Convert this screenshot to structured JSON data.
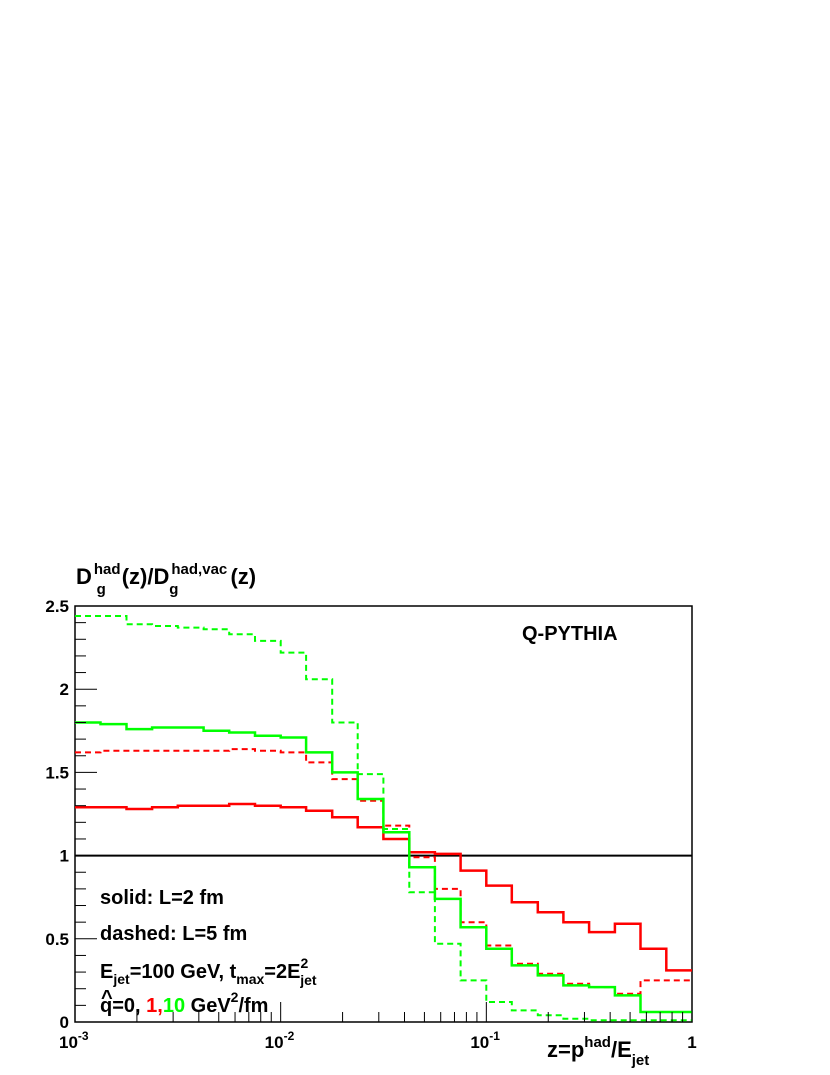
{
  "chart_data": {
    "type": "line",
    "title": "Q-PYTHIA",
    "xscale": "log",
    "xlim": [
      0.001,
      1
    ],
    "ylim": [
      0,
      2.5
    ],
    "xticks": [
      {
        "value": 0.001,
        "base": "10",
        "exp": "-3"
      },
      {
        "value": 0.01,
        "base": "10",
        "exp": "-2"
      },
      {
        "value": 0.1,
        "base": "10",
        "exp": "-1"
      },
      {
        "value": 1,
        "base": "1",
        "exp": ""
      }
    ],
    "yticks": [
      {
        "value": 0,
        "label": "0"
      },
      {
        "value": 0.5,
        "label": "0.5"
      },
      {
        "value": 1,
        "label": "1"
      },
      {
        "value": 1.5,
        "label": "1.5"
      },
      {
        "value": 2,
        "label": "2"
      },
      {
        "value": 2.5,
        "label": "2.5"
      }
    ],
    "ylabel": {
      "D1": "D",
      "sup1": "had",
      "sub1": "g",
      "mid": "(z)/D",
      "sup2": "had,vac",
      "sub2": "g",
      "end": "(z)"
    },
    "xlabel": {
      "pre": "z=p",
      "sup": "had",
      "mid": "/E",
      "sub": "jet"
    },
    "grid": false,
    "reference_line": {
      "y": 1,
      "color": "#000000"
    },
    "bin_edges": [
      0.001,
      0.00133,
      0.00178,
      0.00237,
      0.00316,
      0.00422,
      0.00562,
      0.0075,
      0.01,
      0.0133,
      0.0178,
      0.0237,
      0.0316,
      0.0422,
      0.0562,
      0.075,
      0.1,
      0.133,
      0.178,
      0.237,
      0.316,
      0.422,
      0.562,
      0.75,
      1.0
    ],
    "series": [
      {
        "color": "#ff0000",
        "style": "solid",
        "values": [
          1.29,
          1.29,
          1.28,
          1.29,
          1.3,
          1.3,
          1.31,
          1.3,
          1.29,
          1.27,
          1.23,
          1.17,
          1.1,
          1.02,
          1.01,
          0.91,
          0.82,
          0.72,
          0.66,
          0.6,
          0.54,
          0.59,
          0.44,
          0.31
        ]
      },
      {
        "color": "#ff0000",
        "style": "dashed",
        "values": [
          1.62,
          1.63,
          1.63,
          1.63,
          1.63,
          1.63,
          1.64,
          1.63,
          1.62,
          1.56,
          1.46,
          1.33,
          1.18,
          0.99,
          0.8,
          0.6,
          0.46,
          0.35,
          0.29,
          0.23,
          0.21,
          0.17,
          0.25,
          0.25
        ]
      },
      {
        "color": "#00ff00",
        "style": "solid",
        "values": [
          1.8,
          1.79,
          1.76,
          1.77,
          1.77,
          1.75,
          1.74,
          1.72,
          1.71,
          1.62,
          1.5,
          1.34,
          1.14,
          0.93,
          0.74,
          0.57,
          0.44,
          0.34,
          0.28,
          0.22,
          0.21,
          0.16,
          0.06,
          0.06
        ]
      },
      {
        "color": "#00ff00",
        "style": "dashed",
        "values": [
          2.44,
          2.44,
          2.39,
          2.38,
          2.37,
          2.36,
          2.33,
          2.29,
          2.22,
          2.06,
          1.8,
          1.49,
          1.16,
          0.78,
          0.47,
          0.25,
          0.12,
          0.07,
          0.04,
          0.02,
          0.01,
          0.01,
          0.01,
          0.01
        ]
      }
    ]
  },
  "annotations": {
    "solid": "solid: L=2 fm",
    "dashed": "dashed: L=5 fm",
    "ejet": {
      "p1": "E",
      "sub1": "jet",
      "p2": "=100 GeV, t",
      "sub2": "max",
      "p3": "=2E",
      "sup3": "2",
      "sub3": "jet"
    },
    "qhat": {
      "p1": "q=0, ",
      "hat": "^",
      "v1": "1",
      "comma": ",",
      "v2": "10",
      "p2": "   GeV",
      "sup": "2",
      "p3": "/fm"
    },
    "colors": {
      "red": "#ff0000",
      "green": "#00ff00",
      "black": "#000000"
    }
  }
}
